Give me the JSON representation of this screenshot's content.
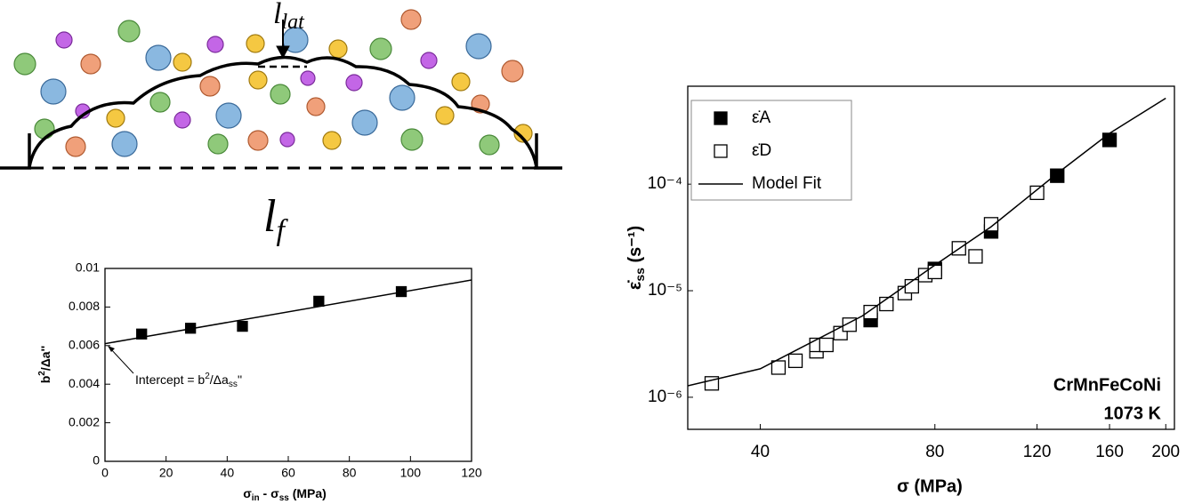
{
  "diagram": {
    "top_label": [
      "l",
      "lat"
    ],
    "bottom_label": [
      "l",
      "f"
    ]
  },
  "chart_data": [
    {
      "type": "scatter",
      "x_label": [
        "σ",
        "in",
        " - σ",
        "ss",
        " (MPa)"
      ],
      "y_label": [
        "b",
        "2",
        "/Δa''"
      ],
      "annotation": [
        "Intercept = b",
        "2",
        "/Δa",
        "ss",
        "''"
      ],
      "xscale": "linear",
      "yscale": "linear",
      "xlim": [
        0,
        120
      ],
      "xticks": [
        0,
        20,
        40,
        60,
        80,
        100,
        120
      ],
      "ylim": [
        0,
        0.01
      ],
      "yticks": [
        0,
        0.002,
        0.004,
        0.006,
        0.008,
        0.01
      ],
      "series": [
        {
          "marker": "filled",
          "color": "#000",
          "x": [
            12,
            28,
            45,
            70,
            97
          ],
          "values": [
            0.0066,
            0.0069,
            0.007,
            0.0083,
            0.0088
          ]
        },
        {
          "marker": "line",
          "color": "#000",
          "x": [
            0,
            120
          ],
          "values": [
            0.0061,
            0.0094
          ]
        }
      ]
    },
    {
      "type": "scatter",
      "x_label": [
        "σ (MPa)"
      ],
      "y_label": [
        "ε̇",
        "ss",
        " (s⁻¹)"
      ],
      "annotations": [
        "CrMnFeCoNi",
        "1073 K"
      ],
      "xscale": "log",
      "yscale": "log",
      "xlim": [
        30,
        207
      ],
      "xticks": [
        40,
        80,
        120,
        160,
        200
      ],
      "ylim": [
        5e-07,
        0.00083
      ],
      "yticks": [
        {
          "value": 1e-06,
          "label": "10⁻⁶"
        },
        {
          "value": 1e-05,
          "label": "10⁻⁵"
        },
        {
          "value": 0.0001,
          "label": "10⁻⁴"
        }
      ],
      "series": [
        {
          "name": "ε̇A",
          "marker": "filled",
          "color": "#000",
          "x": [
            62,
            80,
            100,
            130,
            160
          ],
          "values": [
            5.3e-06,
            1.6e-05,
            3.6e-05,
            0.00012,
            0.00026
          ]
        },
        {
          "name": "ε̇D",
          "marker": "open",
          "color": "#000",
          "x": [
            33,
            43,
            46,
            50,
            50,
            52,
            55,
            57,
            62,
            66,
            71,
            73,
            77,
            80,
            88,
            94,
            100,
            120
          ],
          "values": [
            1.35e-06,
            1.9e-06,
            2.2e-06,
            2.7e-06,
            3.1e-06,
            3.1e-06,
            4e-06,
            4.8e-06,
            6.3e-06,
            7.5e-06,
            9.5e-06,
            1.1e-05,
            1.4e-05,
            1.5e-05,
            2.5e-05,
            2.1e-05,
            4.2e-05,
            8.3e-05
          ]
        },
        {
          "name": "Model Fit",
          "marker": "line",
          "color": "#000",
          "x": [
            30,
            40,
            60,
            80,
            100,
            130,
            160,
            200
          ],
          "values": [
            1.28e-06,
            1.85e-06,
            5.8e-06,
            1.74e-05,
            3.98e-05,
            0.000126,
            0.0003,
            0.00064
          ]
        }
      ]
    }
  ]
}
